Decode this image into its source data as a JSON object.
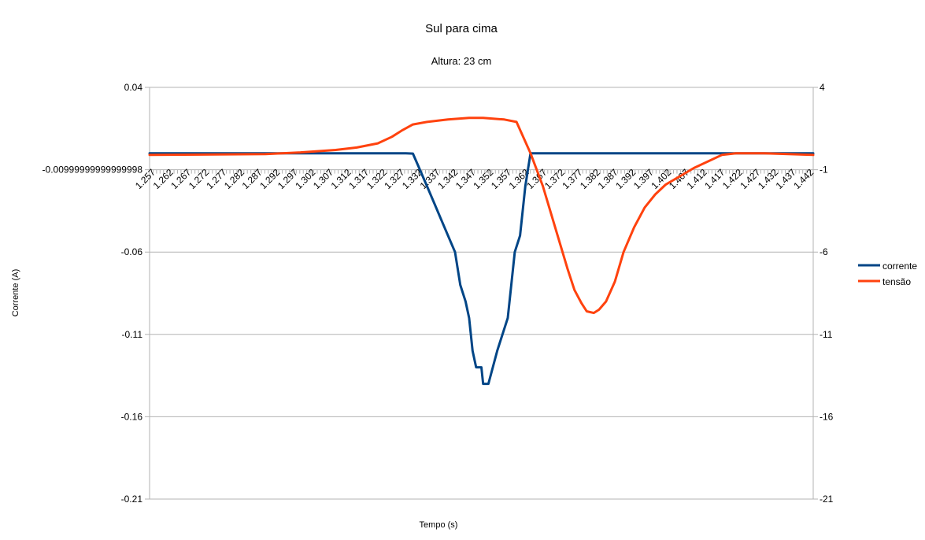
{
  "chart_data": {
    "type": "line",
    "title": "Sul para cima",
    "subtitle": "Altura: 23 cm",
    "xlabel": "Tempo (s)",
    "ylabel": "Corrente (A)",
    "y_left": {
      "min": -0.21,
      "max": 0.04,
      "ticks": [
        "0.04",
        "-0.00999999999999998",
        "-0.06",
        "-0.11",
        "-0.16",
        "-0.21"
      ]
    },
    "y_right": {
      "min": -21,
      "max": 4,
      "ticks": [
        "4",
        "-1",
        "-6",
        "-11",
        "-16",
        "-21"
      ]
    },
    "x_tick_labels": [
      "1.257",
      "1.262",
      "1.267",
      "1.272",
      "1.277",
      "1.282",
      "1.287",
      "1.292",
      "1.297",
      "1.302",
      "1.307",
      "1.312",
      "1.317",
      "1.322",
      "1.327",
      "1.332",
      "1.337",
      "1.342",
      "1.347",
      "1.352",
      "1.357",
      "1.362",
      "1.367",
      "1.372",
      "1.377",
      "1.382",
      "1.387",
      "1.392",
      "1.397",
      "1.402",
      "1.407",
      "1.412",
      "1.417",
      "1.422",
      "1.427",
      "1.432",
      "1.437",
      "1.442"
    ],
    "x_range": [
      1.257,
      1.446
    ],
    "grid": true,
    "legend_position": "right",
    "series": [
      {
        "name": "corrente",
        "axis": "left",
        "color": "#004586",
        "points": [
          [
            1.257,
            0.0
          ],
          [
            1.33,
            0.0
          ],
          [
            1.332,
            -0.0002
          ],
          [
            1.334,
            -0.01
          ],
          [
            1.336,
            -0.02
          ],
          [
            1.338,
            -0.03
          ],
          [
            1.34,
            -0.04
          ],
          [
            1.342,
            -0.05
          ],
          [
            1.344,
            -0.06
          ],
          [
            1.3455,
            -0.08
          ],
          [
            1.347,
            -0.09
          ],
          [
            1.348,
            -0.1
          ],
          [
            1.349,
            -0.12
          ],
          [
            1.35,
            -0.13
          ],
          [
            1.3515,
            -0.13
          ],
          [
            1.352,
            -0.14
          ],
          [
            1.3535,
            -0.14
          ],
          [
            1.356,
            -0.12
          ],
          [
            1.359,
            -0.1
          ],
          [
            1.361,
            -0.06
          ],
          [
            1.3625,
            -0.05
          ],
          [
            1.364,
            -0.02
          ],
          [
            1.3655,
            0.0
          ],
          [
            1.446,
            0.0
          ]
        ]
      },
      {
        "name": "tensão",
        "axis": "right",
        "color": "#ff420e",
        "points": [
          [
            1.257,
            -0.1
          ],
          [
            1.29,
            -0.05
          ],
          [
            1.3,
            0.05
          ],
          [
            1.31,
            0.2
          ],
          [
            1.316,
            0.35
          ],
          [
            1.322,
            0.6
          ],
          [
            1.326,
            1.0
          ],
          [
            1.329,
            1.4
          ],
          [
            1.332,
            1.75
          ],
          [
            1.336,
            1.9
          ],
          [
            1.342,
            2.05
          ],
          [
            1.348,
            2.15
          ],
          [
            1.352,
            2.15
          ],
          [
            1.358,
            2.05
          ],
          [
            1.3615,
            1.9
          ],
          [
            1.3655,
            0.0
          ],
          [
            1.369,
            -2.0
          ],
          [
            1.3725,
            -4.5
          ],
          [
            1.376,
            -7.0
          ],
          [
            1.378,
            -8.3
          ],
          [
            1.38,
            -9.1
          ],
          [
            1.3815,
            -9.6
          ],
          [
            1.3835,
            -9.7
          ],
          [
            1.385,
            -9.5
          ],
          [
            1.387,
            -9.0
          ],
          [
            1.3895,
            -7.8
          ],
          [
            1.392,
            -6.0
          ],
          [
            1.395,
            -4.5
          ],
          [
            1.398,
            -3.3
          ],
          [
            1.401,
            -2.5
          ],
          [
            1.404,
            -1.9
          ],
          [
            1.408,
            -1.4
          ],
          [
            1.412,
            -0.9
          ],
          [
            1.416,
            -0.5
          ],
          [
            1.42,
            -0.1
          ],
          [
            1.424,
            0.0
          ],
          [
            1.432,
            0.0
          ],
          [
            1.446,
            -0.1
          ]
        ]
      }
    ]
  }
}
